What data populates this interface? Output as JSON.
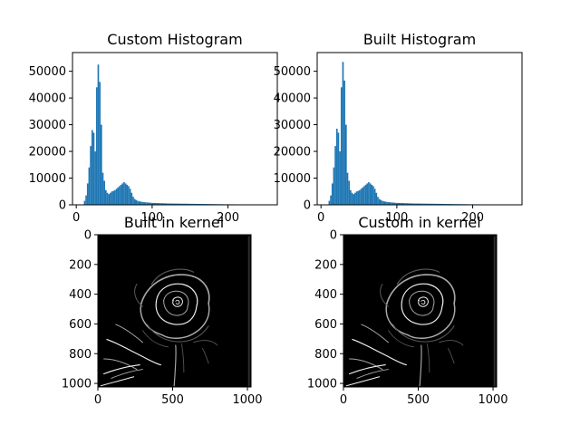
{
  "colors": {
    "bar": "#1f77b4",
    "image_background": "#000000",
    "edge_strong": "#f2f2f2",
    "edge_mid": "#a8a8a8",
    "edge_faint": "#5a5a5a",
    "axis": "#000000",
    "figure_background": "#ffffff"
  },
  "chart_data": [
    {
      "id": "custom-histogram",
      "type": "bar",
      "title": "Custom Histogram",
      "xlabel": "",
      "ylabel": "",
      "xlim": [
        -5,
        265
      ],
      "ylim": [
        0,
        57000
      ],
      "xticks": [
        0,
        100,
        200
      ],
      "xtick_labels": [
        "0",
        "100",
        "200"
      ],
      "yticks": [
        0,
        10000,
        20000,
        30000,
        40000,
        50000
      ],
      "ytick_labels": [
        "0",
        "10000",
        "20000",
        "30000",
        "40000",
        "50000"
      ],
      "grid": false,
      "bins_x": [
        10,
        12,
        14,
        16,
        18,
        20,
        22,
        24,
        26,
        28,
        30,
        32,
        34,
        36,
        38,
        40,
        42,
        44,
        46,
        48,
        50,
        52,
        54,
        56,
        58,
        60,
        62,
        64,
        66,
        68,
        70,
        72,
        74,
        76,
        78,
        80,
        82,
        84,
        86,
        88,
        90,
        92,
        94,
        96,
        98,
        100,
        105,
        110,
        115,
        120,
        125,
        130,
        135,
        140,
        145,
        150,
        155,
        160,
        165,
        170,
        175,
        180,
        185,
        190,
        195,
        200,
        205,
        210,
        215,
        220,
        225,
        230,
        235,
        240,
        245,
        250,
        255
      ],
      "values": [
        1500,
        3500,
        8000,
        14000,
        22000,
        28000,
        27000,
        20000,
        44000,
        52500,
        46000,
        30000,
        12000,
        9000,
        5500,
        4500,
        4000,
        4500,
        5000,
        5200,
        5500,
        6000,
        6500,
        7000,
        7500,
        8000,
        8500,
        8000,
        7500,
        7000,
        6000,
        4500,
        3000,
        2200,
        1800,
        1500,
        1300,
        1200,
        1100,
        1000,
        950,
        900,
        850,
        800,
        750,
        700,
        650,
        600,
        550,
        500,
        480,
        460,
        440,
        420,
        400,
        380,
        360,
        340,
        320,
        300,
        280,
        260,
        240,
        220,
        200,
        190,
        180,
        170,
        160,
        150,
        140,
        130,
        110,
        90,
        60,
        40,
        20
      ]
    },
    {
      "id": "built-histogram",
      "type": "bar",
      "title": "Built Histogram",
      "xlabel": "",
      "ylabel": "",
      "xlim": [
        -5,
        265
      ],
      "ylim": [
        0,
        57000
      ],
      "xticks": [
        0,
        100,
        200
      ],
      "xtick_labels": [
        "0",
        "100",
        "200"
      ],
      "yticks": [
        0,
        10000,
        20000,
        30000,
        40000,
        50000
      ],
      "ytick_labels": [
        "0",
        "10000",
        "20000",
        "30000",
        "40000",
        "50000"
      ],
      "grid": false,
      "bins_x": [
        10,
        12,
        14,
        16,
        18,
        20,
        22,
        24,
        26,
        28,
        30,
        32,
        34,
        36,
        38,
        40,
        42,
        44,
        46,
        48,
        50,
        52,
        54,
        56,
        58,
        60,
        62,
        64,
        66,
        68,
        70,
        72,
        74,
        76,
        78,
        80,
        82,
        84,
        86,
        88,
        90,
        92,
        94,
        96,
        98,
        100,
        105,
        110,
        115,
        120,
        125,
        130,
        135,
        140,
        145,
        150,
        155,
        160,
        165,
        170,
        175,
        180,
        185,
        190,
        195,
        200,
        205,
        210,
        215,
        220,
        225,
        230,
        235,
        240,
        245,
        250,
        255
      ],
      "values": [
        1500,
        3500,
        8000,
        14000,
        22000,
        28500,
        27000,
        20000,
        44000,
        53500,
        46500,
        30000,
        12000,
        9000,
        5500,
        4500,
        4000,
        4500,
        5000,
        5200,
        5500,
        6000,
        6500,
        7000,
        7500,
        8000,
        8500,
        8000,
        7500,
        7000,
        6000,
        4500,
        3000,
        2200,
        1800,
        1500,
        1300,
        1200,
        1100,
        1000,
        950,
        900,
        850,
        800,
        750,
        700,
        650,
        600,
        550,
        500,
        480,
        460,
        440,
        420,
        400,
        380,
        360,
        340,
        320,
        300,
        280,
        260,
        240,
        220,
        200,
        190,
        180,
        170,
        160,
        150,
        140,
        130,
        110,
        90,
        60,
        40,
        20
      ]
    },
    {
      "id": "built-in-kernel",
      "type": "heatmap",
      "title": "Built in kernel",
      "xlim": [
        0,
        1024
      ],
      "ylim": [
        1024,
        0
      ],
      "xticks": [
        0,
        500,
        1000
      ],
      "xtick_labels": [
        "0",
        "500",
        "1000"
      ],
      "yticks": [
        0,
        200,
        400,
        600,
        800,
        1000
      ],
      "ytick_labels": [
        "0",
        "200",
        "400",
        "600",
        "800",
        "1000"
      ],
      "grid": false
    },
    {
      "id": "custom-in-kernel",
      "type": "heatmap",
      "title": "Custom in kernel",
      "xlim": [
        0,
        1024
      ],
      "ylim": [
        1024,
        0
      ],
      "xticks": [
        0,
        500,
        1000
      ],
      "xtick_labels": [
        "0",
        "500",
        "1000"
      ],
      "yticks": [
        0,
        200,
        400,
        600,
        800,
        1000
      ],
      "ytick_labels": [
        "0",
        "200",
        "400",
        "600",
        "800",
        "1000"
      ],
      "grid": false
    }
  ]
}
